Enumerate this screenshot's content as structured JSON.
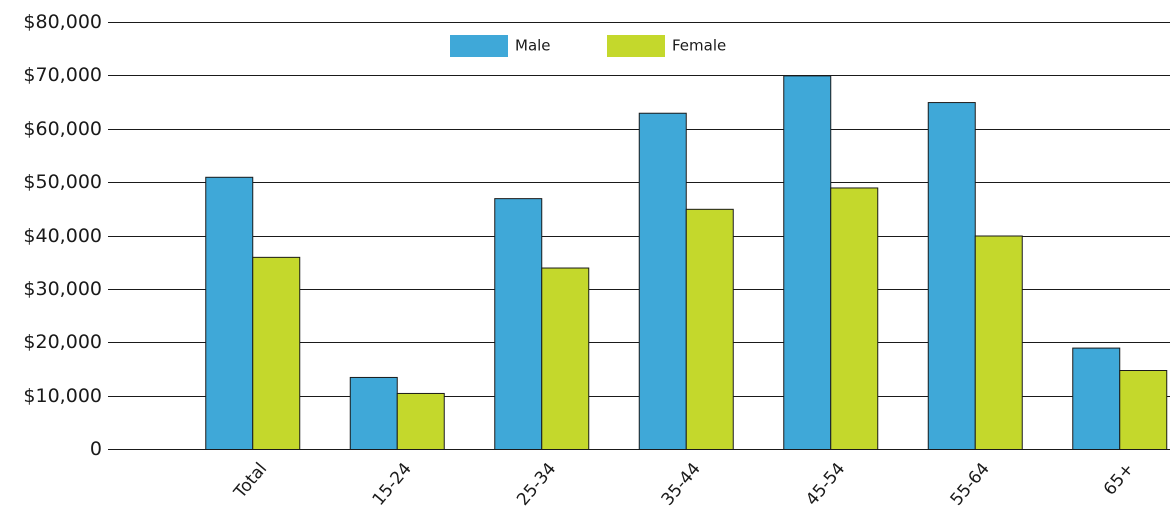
{
  "chart_data": {
    "type": "bar",
    "title": "",
    "xlabel": "",
    "ylabel": "",
    "categories": [
      "Total",
      "15-24",
      "25-34",
      "35-44",
      "45-54",
      "55-64",
      "65+"
    ],
    "series": [
      {
        "name": "Male",
        "color": "#3fa8d8",
        "values": [
          51000,
          13500,
          47000,
          63000,
          70000,
          65000,
          19000
        ]
      },
      {
        "name": "Female",
        "color": "#c4d82c",
        "values": [
          36000,
          10500,
          34000,
          45000,
          49000,
          40000,
          14800
        ]
      }
    ],
    "ylim": [
      0,
      80000
    ],
    "yticks": [
      0,
      10000,
      20000,
      30000,
      40000,
      50000,
      60000,
      70000,
      80000
    ],
    "ytick_labels": [
      "0",
      "$10,000",
      "$20,000",
      "$30,000",
      "$40,000",
      "$50,000",
      "$60,000",
      "$70,000",
      "$80,000"
    ],
    "grid": true,
    "legend_position": "top-center"
  }
}
